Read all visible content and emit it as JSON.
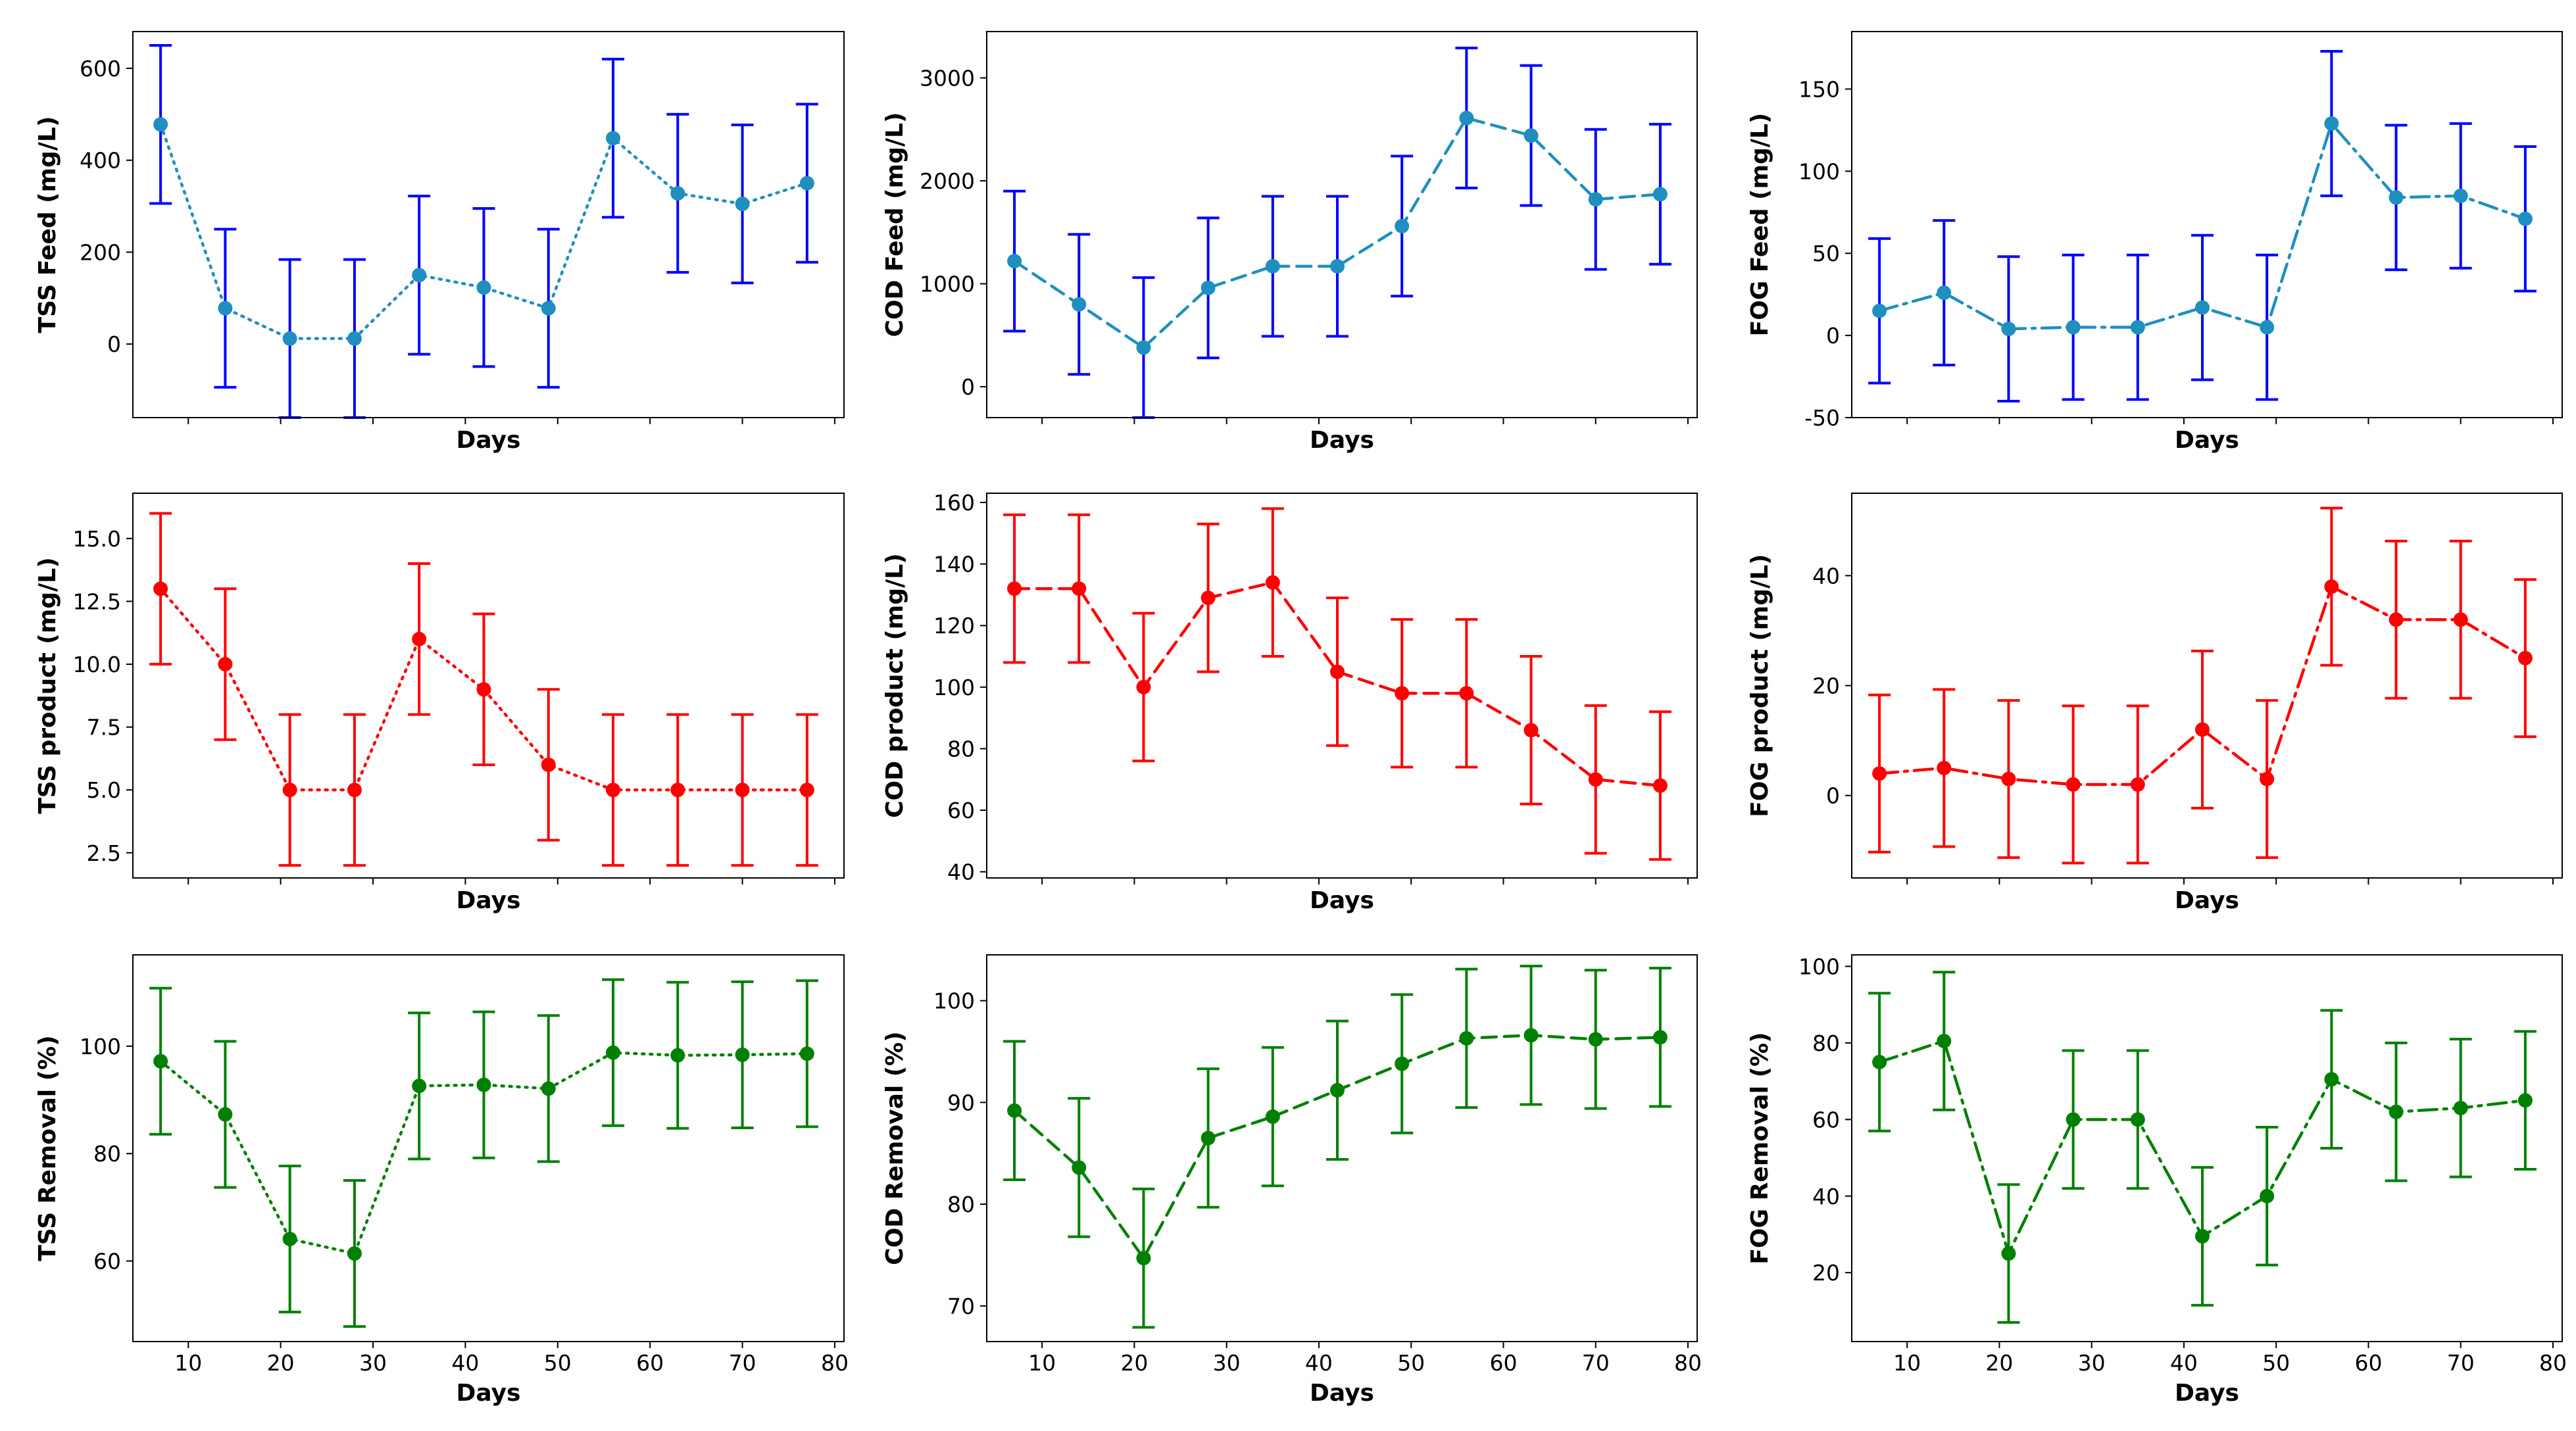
{
  "figure": {
    "x_label": "Days",
    "x_ticks": [
      10,
      20,
      30,
      40,
      50,
      60,
      70,
      80
    ],
    "days": [
      7,
      14,
      21,
      28,
      35,
      42,
      49,
      56,
      63,
      70,
      77
    ],
    "colors": {
      "feed_line": "#1f8fbf",
      "feed_error": "#0000ff",
      "product": "#ff0000",
      "removal": "#008000",
      "axes": "#000000"
    }
  },
  "chart_data": [
    {
      "id": "tss-feed",
      "type": "line",
      "row": 0,
      "col": 0,
      "ylabel": "TSS Feed (mg/L)",
      "linestyle": "dotted",
      "color_key": "feed",
      "ylim": [
        -160,
        680
      ],
      "yticks": [
        0,
        200,
        400,
        600
      ],
      "x": [
        7,
        14,
        21,
        28,
        35,
        42,
        49,
        56,
        63,
        70,
        77
      ],
      "y": [
        478,
        78,
        12,
        12,
        150,
        123,
        78,
        448,
        328,
        305,
        350
      ],
      "yerr": [
        172,
        172,
        172,
        172,
        172,
        172,
        172,
        172,
        172,
        172,
        172
      ]
    },
    {
      "id": "cod-feed",
      "type": "line",
      "row": 0,
      "col": 1,
      "ylabel": "COD Feed (mg/L)",
      "linestyle": "dashed",
      "color_key": "feed",
      "ylim": [
        -300,
        3450
      ],
      "yticks": [
        0,
        1000,
        2000,
        3000
      ],
      "x": [
        7,
        14,
        21,
        28,
        35,
        42,
        49,
        56,
        63,
        70,
        77
      ],
      "y": [
        1220,
        800,
        380,
        960,
        1170,
        1170,
        1560,
        2610,
        2440,
        1820,
        1870
      ],
      "yerr": [
        680,
        680,
        680,
        680,
        680,
        680,
        680,
        680,
        680,
        680,
        680
      ]
    },
    {
      "id": "fog-feed",
      "type": "line",
      "row": 0,
      "col": 2,
      "ylabel": "FOG Feed (mg/L)",
      "linestyle": "dashdot",
      "color_key": "feed",
      "ylim": [
        -50,
        185
      ],
      "yticks": [
        -50,
        0,
        50,
        100,
        150
      ],
      "x": [
        7,
        14,
        21,
        28,
        35,
        42,
        49,
        56,
        63,
        70,
        77
      ],
      "y": [
        15,
        26,
        4,
        5,
        5,
        17,
        5,
        129,
        84,
        85,
        71
      ],
      "yerr": [
        44,
        44,
        44,
        44,
        44,
        44,
        44,
        44,
        44,
        44,
        44
      ]
    },
    {
      "id": "tss-product",
      "type": "line",
      "row": 1,
      "col": 0,
      "ylabel": "TSS product (mg/L)",
      "linestyle": "dotted",
      "color_key": "product",
      "ylim": [
        1.5,
        16.8
      ],
      "yticks": [
        2.5,
        5.0,
        7.5,
        10.0,
        12.5,
        15.0
      ],
      "ytick_labels": [
        "2.5",
        "5.0",
        "7.5",
        "10.0",
        "12.5",
        "15.0"
      ],
      "x": [
        7,
        14,
        21,
        28,
        35,
        42,
        49,
        56,
        63,
        70,
        77
      ],
      "y": [
        13,
        10,
        5,
        5,
        11,
        9,
        6,
        5,
        5,
        5,
        5
      ],
      "yerr": [
        3,
        3,
        3,
        3,
        3,
        3,
        3,
        3,
        3,
        3,
        3
      ]
    },
    {
      "id": "cod-product",
      "type": "line",
      "row": 1,
      "col": 1,
      "ylabel": "COD product (mg/L)",
      "linestyle": "dashed",
      "color_key": "product",
      "ylim": [
        38,
        163
      ],
      "yticks": [
        40,
        60,
        80,
        100,
        120,
        140,
        160
      ],
      "x": [
        7,
        14,
        21,
        28,
        35,
        42,
        49,
        56,
        63,
        70,
        77
      ],
      "y": [
        132,
        132,
        100,
        129,
        134,
        105,
        98,
        98,
        86,
        70,
        68
      ],
      "yerr": [
        24,
        24,
        24,
        24,
        24,
        24,
        24,
        24,
        24,
        24,
        24
      ]
    },
    {
      "id": "fog-product",
      "type": "line",
      "row": 1,
      "col": 2,
      "ylabel": "FOG product (mg/L)",
      "linestyle": "dashdot",
      "color_key": "product",
      "ylim": [
        -15,
        55
      ],
      "yticks": [
        0,
        20,
        40
      ],
      "x": [
        7,
        14,
        21,
        28,
        35,
        42,
        49,
        56,
        63,
        70,
        77
      ],
      "y": [
        4,
        5,
        3,
        2,
        2,
        12,
        3,
        38,
        32,
        32,
        25
      ],
      "yerr": [
        14.3,
        14.3,
        14.3,
        14.3,
        14.3,
        14.3,
        14.3,
        14.3,
        14.3,
        14.3,
        14.3
      ]
    },
    {
      "id": "tss-removal",
      "type": "line",
      "row": 2,
      "col": 0,
      "ylabel": "TSS Removal (%)",
      "linestyle": "dotted",
      "color_key": "removal",
      "ylim": [
        45,
        117
      ],
      "yticks": [
        60,
        80,
        100
      ],
      "x": [
        7,
        14,
        21,
        28,
        35,
        42,
        49,
        56,
        63,
        70,
        77
      ],
      "y": [
        97.2,
        87.3,
        64.1,
        61.4,
        92.6,
        92.8,
        92.1,
        98.8,
        98.3,
        98.4,
        98.6
      ],
      "yerr": [
        13.6,
        13.6,
        13.6,
        13.6,
        13.6,
        13.6,
        13.6,
        13.6,
        13.6,
        13.6,
        13.6
      ]
    },
    {
      "id": "cod-removal",
      "type": "line",
      "row": 2,
      "col": 1,
      "ylabel": "COD Removal (%)",
      "linestyle": "dashed",
      "color_key": "removal",
      "ylim": [
        66.5,
        104.5
      ],
      "yticks": [
        70,
        80,
        90,
        100
      ],
      "x": [
        7,
        14,
        21,
        28,
        35,
        42,
        49,
        56,
        63,
        70,
        77
      ],
      "y": [
        89.2,
        83.6,
        74.7,
        86.5,
        88.6,
        91.2,
        93.8,
        96.3,
        96.6,
        96.2,
        96.4
      ],
      "yerr": [
        6.8,
        6.8,
        6.8,
        6.8,
        6.8,
        6.8,
        6.8,
        6.8,
        6.8,
        6.8,
        6.8
      ]
    },
    {
      "id": "fog-removal",
      "type": "line",
      "row": 2,
      "col": 2,
      "ylabel": "FOG Removal (%)",
      "linestyle": "dashdot",
      "color_key": "removal",
      "ylim": [
        2,
        103
      ],
      "yticks": [
        20,
        40,
        60,
        80,
        100
      ],
      "x": [
        7,
        14,
        21,
        28,
        35,
        42,
        49,
        56,
        63,
        70,
        77
      ],
      "y": [
        75,
        80.5,
        25,
        60,
        60,
        29.5,
        40,
        70.5,
        62,
        63,
        65
      ],
      "yerr": [
        18,
        18,
        18,
        18,
        18,
        18,
        18,
        18,
        18,
        18,
        18
      ]
    }
  ]
}
